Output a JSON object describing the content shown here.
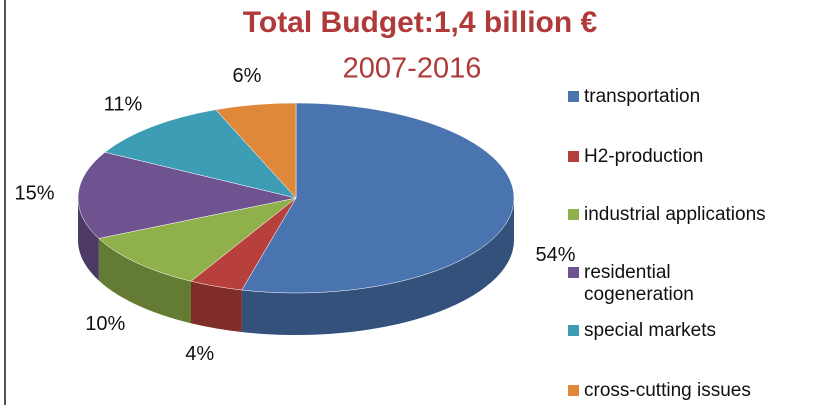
{
  "chart_data": {
    "type": "pie",
    "title": "Total Budget:1,4 billion €",
    "subtitle": "2007-2016",
    "categories": [
      "transportation",
      "H2-production",
      "industrial applications",
      "residential cogeneration",
      "special markets",
      "cross-cutting issues"
    ],
    "values": [
      54,
      4,
      10,
      15,
      11,
      6
    ],
    "value_labels": [
      "54%",
      "4%",
      "10%",
      "15%",
      "11%",
      "6%"
    ],
    "colors": [
      "#4a74b0",
      "#b8403c",
      "#8fb04a",
      "#6e5390",
      "#3d9db5",
      "#e0883a"
    ],
    "legend": "right"
  }
}
